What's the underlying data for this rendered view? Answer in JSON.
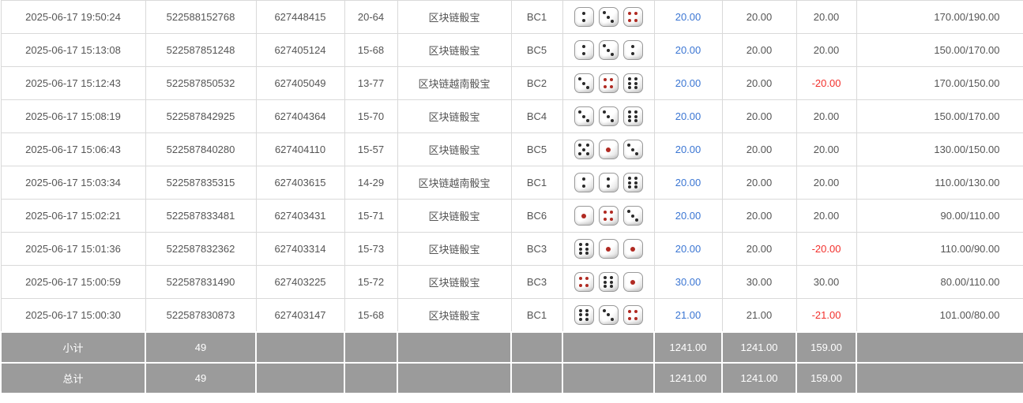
{
  "colors": {
    "accent_blue": "#3b76d3",
    "negative_red": "#f2302c",
    "footer_gray": "#9b9b9b",
    "border_gray": "#d9d9d9",
    "body_text": "#555555",
    "pip_black": "#2a2a2a",
    "pip_red": "#b02a22"
  },
  "table": {
    "rows": [
      {
        "time": "2025-06-17 19:50:24",
        "bet_id": "522588152768",
        "round_id": "627448415",
        "period": "20-64",
        "game": "区块链骰宝",
        "table_code": "BC1",
        "dice": [
          2,
          3,
          4
        ],
        "bet": "20.00",
        "valid": "20.00",
        "result": "20.00",
        "range": "170.00/190.00"
      },
      {
        "time": "2025-06-17 15:13:08",
        "bet_id": "522587851248",
        "round_id": "627405124",
        "period": "15-68",
        "game": "区块链骰宝",
        "table_code": "BC5",
        "dice": [
          2,
          3,
          2
        ],
        "bet": "20.00",
        "valid": "20.00",
        "result": "20.00",
        "range": "150.00/170.00"
      },
      {
        "time": "2025-06-17 15:12:43",
        "bet_id": "522587850532",
        "round_id": "627405049",
        "period": "13-77",
        "game": "区块链越南骰宝",
        "table_code": "BC2",
        "dice": [
          3,
          4,
          6
        ],
        "bet": "20.00",
        "valid": "20.00",
        "result": "-20.00",
        "range": "170.00/150.00"
      },
      {
        "time": "2025-06-17 15:08:19",
        "bet_id": "522587842925",
        "round_id": "627404364",
        "period": "15-70",
        "game": "区块链骰宝",
        "table_code": "BC4",
        "dice": [
          3,
          3,
          6
        ],
        "bet": "20.00",
        "valid": "20.00",
        "result": "20.00",
        "range": "150.00/170.00"
      },
      {
        "time": "2025-06-17 15:06:43",
        "bet_id": "522587840280",
        "round_id": "627404110",
        "period": "15-57",
        "game": "区块链骰宝",
        "table_code": "BC5",
        "dice": [
          5,
          1,
          3
        ],
        "bet": "20.00",
        "valid": "20.00",
        "result": "20.00",
        "range": "130.00/150.00"
      },
      {
        "time": "2025-06-17 15:03:34",
        "bet_id": "522587835315",
        "round_id": "627403615",
        "period": "14-29",
        "game": "区块链越南骰宝",
        "table_code": "BC1",
        "dice": [
          2,
          2,
          6
        ],
        "bet": "20.00",
        "valid": "20.00",
        "result": "20.00",
        "range": "110.00/130.00"
      },
      {
        "time": "2025-06-17 15:02:21",
        "bet_id": "522587833481",
        "round_id": "627403431",
        "period": "15-71",
        "game": "区块链骰宝",
        "table_code": "BC6",
        "dice": [
          1,
          4,
          3
        ],
        "bet": "20.00",
        "valid": "20.00",
        "result": "20.00",
        "range": "90.00/110.00"
      },
      {
        "time": "2025-06-17 15:01:36",
        "bet_id": "522587832362",
        "round_id": "627403314",
        "period": "15-73",
        "game": "区块链骰宝",
        "table_code": "BC3",
        "dice": [
          6,
          1,
          1
        ],
        "bet": "20.00",
        "valid": "20.00",
        "result": "-20.00",
        "range": "110.00/90.00"
      },
      {
        "time": "2025-06-17 15:00:59",
        "bet_id": "522587831490",
        "round_id": "627403225",
        "period": "15-72",
        "game": "区块链骰宝",
        "table_code": "BC3",
        "dice": [
          4,
          6,
          1
        ],
        "bet": "30.00",
        "valid": "30.00",
        "result": "30.00",
        "range": "80.00/110.00"
      },
      {
        "time": "2025-06-17 15:00:30",
        "bet_id": "522587830873",
        "round_id": "627403147",
        "period": "15-68",
        "game": "区块链骰宝",
        "table_code": "BC1",
        "dice": [
          6,
          3,
          4
        ],
        "bet": "21.00",
        "valid": "21.00",
        "result": "-21.00",
        "range": "101.00/80.00"
      }
    ],
    "subtotal": {
      "label": "小计",
      "count": "49",
      "bet": "1241.00",
      "valid": "1241.00",
      "result": "159.00"
    },
    "total": {
      "label": "总计",
      "count": "49",
      "bet": "1241.00",
      "valid": "1241.00",
      "result": "159.00"
    }
  }
}
